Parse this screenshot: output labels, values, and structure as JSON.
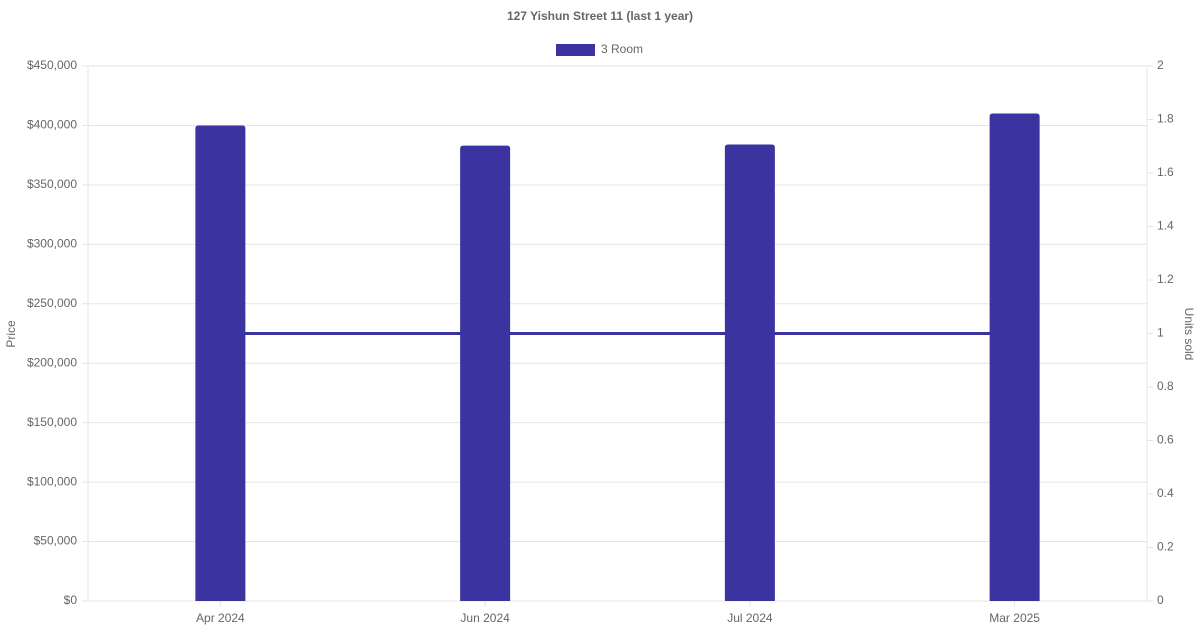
{
  "chart_data": {
    "type": "bar",
    "title": "127 Yishun Street 11 (last 1 year)",
    "categories": [
      "Apr 2024",
      "Jun 2024",
      "Jul 2024",
      "Mar 2025"
    ],
    "series": [
      {
        "name": "3 Room",
        "color": "#3a33a0",
        "values": [
          400000,
          383000,
          384000,
          410000
        ]
      },
      {
        "type": "line",
        "axis": "y2",
        "color": "#3a33a0",
        "values": [
          1,
          1,
          1,
          1
        ]
      }
    ],
    "ylabel": "Price",
    "y2label": "Units sold",
    "ylim": [
      0,
      450000
    ],
    "yticks": [
      {
        "value": 0,
        "label": "$0"
      },
      {
        "value": 50000,
        "label": "$50,000"
      },
      {
        "value": 100000,
        "label": "$100,000"
      },
      {
        "value": 150000,
        "label": "$150,000"
      },
      {
        "value": 200000,
        "label": "$200,000"
      },
      {
        "value": 250000,
        "label": "$250,000"
      },
      {
        "value": 300000,
        "label": "$300,000"
      },
      {
        "value": 350000,
        "label": "$350,000"
      },
      {
        "value": 400000,
        "label": "$400,000"
      },
      {
        "value": 450000,
        "label": "$450,000"
      }
    ],
    "y2lim": [
      0,
      2
    ],
    "y2ticks": [
      0,
      0.2,
      0.4,
      0.6,
      0.8,
      1,
      1.2,
      1.4,
      1.6,
      1.8,
      2
    ],
    "grid": true,
    "legend": "top"
  }
}
